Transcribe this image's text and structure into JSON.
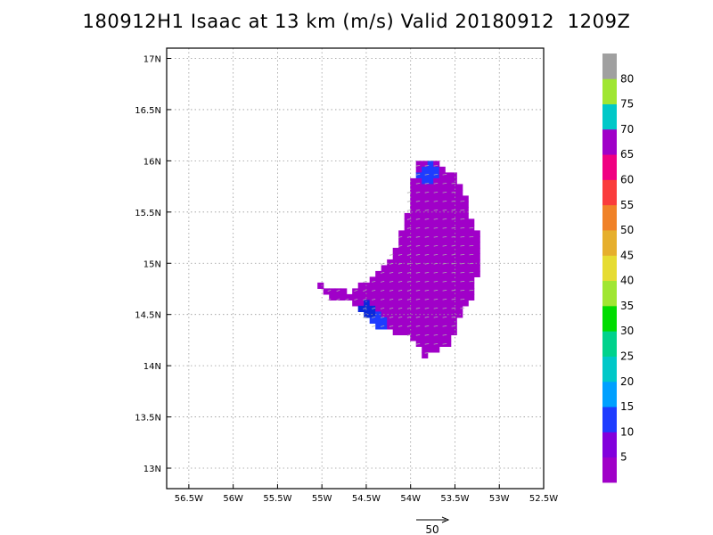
{
  "title": "180912H1 Isaac at 13 km (m/s) Valid 20180912  1209Z",
  "map": {
    "lon_range": [
      -56.75,
      -52.5
    ],
    "lat_range": [
      12.8,
      17.1
    ],
    "grid": "dotted",
    "lon_ticks": [
      {
        "value": -56.5,
        "label": "56.5W"
      },
      {
        "value": -56.0,
        "label": "56W"
      },
      {
        "value": -55.5,
        "label": "55.5W"
      },
      {
        "value": -55.0,
        "label": "55W"
      },
      {
        "value": -54.5,
        "label": "54.5W"
      },
      {
        "value": -54.0,
        "label": "54W"
      },
      {
        "value": -53.5,
        "label": "53.5W"
      },
      {
        "value": -53.0,
        "label": "53W"
      },
      {
        "value": -52.5,
        "label": "52.5W"
      }
    ],
    "lat_ticks": [
      {
        "value": 13.0,
        "label": "13N"
      },
      {
        "value": 13.5,
        "label": "13.5N"
      },
      {
        "value": 14.0,
        "label": "14N"
      },
      {
        "value": 14.5,
        "label": "14.5N"
      },
      {
        "value": 15.0,
        "label": "15N"
      },
      {
        "value": 15.5,
        "label": "15.5N"
      },
      {
        "value": 16.0,
        "label": "16N"
      },
      {
        "value": 16.5,
        "label": "16.5N"
      },
      {
        "value": 17.0,
        "label": "17N"
      }
    ]
  },
  "wind_field": {
    "units": "m/s",
    "data_outline_latlon": [
      [
        -53.9,
        16.0
      ],
      [
        -53.75,
        16.0
      ],
      [
        -53.5,
        15.85
      ],
      [
        -53.4,
        15.7
      ],
      [
        -53.35,
        15.5
      ],
      [
        -53.25,
        15.3
      ],
      [
        -53.25,
        14.9
      ],
      [
        -53.3,
        14.7
      ],
      [
        -53.45,
        14.45
      ],
      [
        -53.55,
        14.2
      ],
      [
        -53.85,
        14.1
      ],
      [
        -54.0,
        14.3
      ],
      [
        -54.35,
        14.35
      ],
      [
        -54.55,
        14.5
      ],
      [
        -54.6,
        14.6
      ],
      [
        -54.9,
        14.65
      ],
      [
        -55.05,
        14.8
      ],
      [
        -54.7,
        14.72
      ],
      [
        -54.45,
        14.85
      ],
      [
        -54.2,
        15.1
      ],
      [
        -54.05,
        15.4
      ],
      [
        -54.0,
        15.75
      ]
    ],
    "fill_color": "#a000c8",
    "patches": [
      {
        "color": "#1e3cff",
        "label": "15",
        "center_latlon": [
          -54.4,
          14.42
        ]
      },
      {
        "color": "#1e3cff",
        "label": "15",
        "center_latlon": [
          -53.8,
          15.88
        ]
      },
      {
        "color": "#0a28dc",
        "label": "10",
        "center_latlon": [
          -54.5,
          14.52
        ]
      }
    ],
    "arrow_color": "#b0b0b0"
  },
  "colorbar": {
    "labels": [
      "5",
      "10",
      "15",
      "20",
      "25",
      "30",
      "35",
      "40",
      "45",
      "50",
      "55",
      "60",
      "65",
      "70",
      "75",
      "80"
    ],
    "colors": [
      "#a000c8",
      "#8200dc",
      "#1e3cff",
      "#00a0ff",
      "#00c8c8",
      "#00d28c",
      "#00dc00",
      "#a0e632",
      "#e6dc32",
      "#e6af2d",
      "#f08228",
      "#fa3c3c",
      "#f00082",
      "#a000c8",
      "#00c8c8",
      "#a0e632",
      "#a0a0a0"
    ]
  },
  "reference_vector": {
    "label": "50"
  }
}
